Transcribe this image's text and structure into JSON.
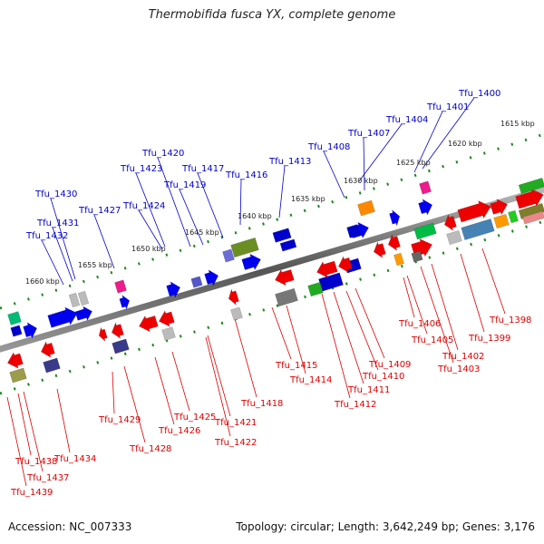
{
  "title": "Thermobifida fusca YX, complete genome",
  "footer": {
    "accession": "Accession: NC_007333",
    "summary": "Topology: circular; Length: 3,642,249 bp; Genes: 3,176"
  },
  "colors": {
    "backbone": "#777777",
    "tick": "#1a8a1a",
    "forward_label": "#0000cc",
    "reverse_label": "#dd0000"
  },
  "kbp_ticks": [
    "1615 kbp",
    "1620 kbp",
    "1625 kbp",
    "1630 kbp",
    "1635 kbp",
    "1640 kbp",
    "1645 kbp",
    "1650 kbp",
    "1655 kbp",
    "1660 kbp"
  ],
  "forward_genes": [
    "Tfu_1400",
    "Tfu_1401",
    "Tfu_1404",
    "Tfu_1407",
    "Tfu_1408",
    "Tfu_1413",
    "Tfu_1416",
    "Tfu_1417",
    "Tfu_1419",
    "Tfu_1420",
    "Tfu_1423",
    "Tfu_1424",
    "Tfu_1427",
    "Tfu_1430",
    "Tfu_1431",
    "Tfu_1432"
  ],
  "reverse_genes": [
    "Tfu_1398",
    "Tfu_1399",
    "Tfu_1402",
    "Tfu_1403",
    "Tfu_1405",
    "Tfu_1406",
    "Tfu_1409",
    "Tfu_1410",
    "Tfu_1411",
    "Tfu_1412",
    "Tfu_1414",
    "Tfu_1415",
    "Tfu_1418",
    "Tfu_1421",
    "Tfu_1422",
    "Tfu_1425",
    "Tfu_1426",
    "Tfu_1428",
    "Tfu_1429",
    "Tfu_1434",
    "Tfu_1437",
    "Tfu_1438",
    "Tfu_1439"
  ]
}
